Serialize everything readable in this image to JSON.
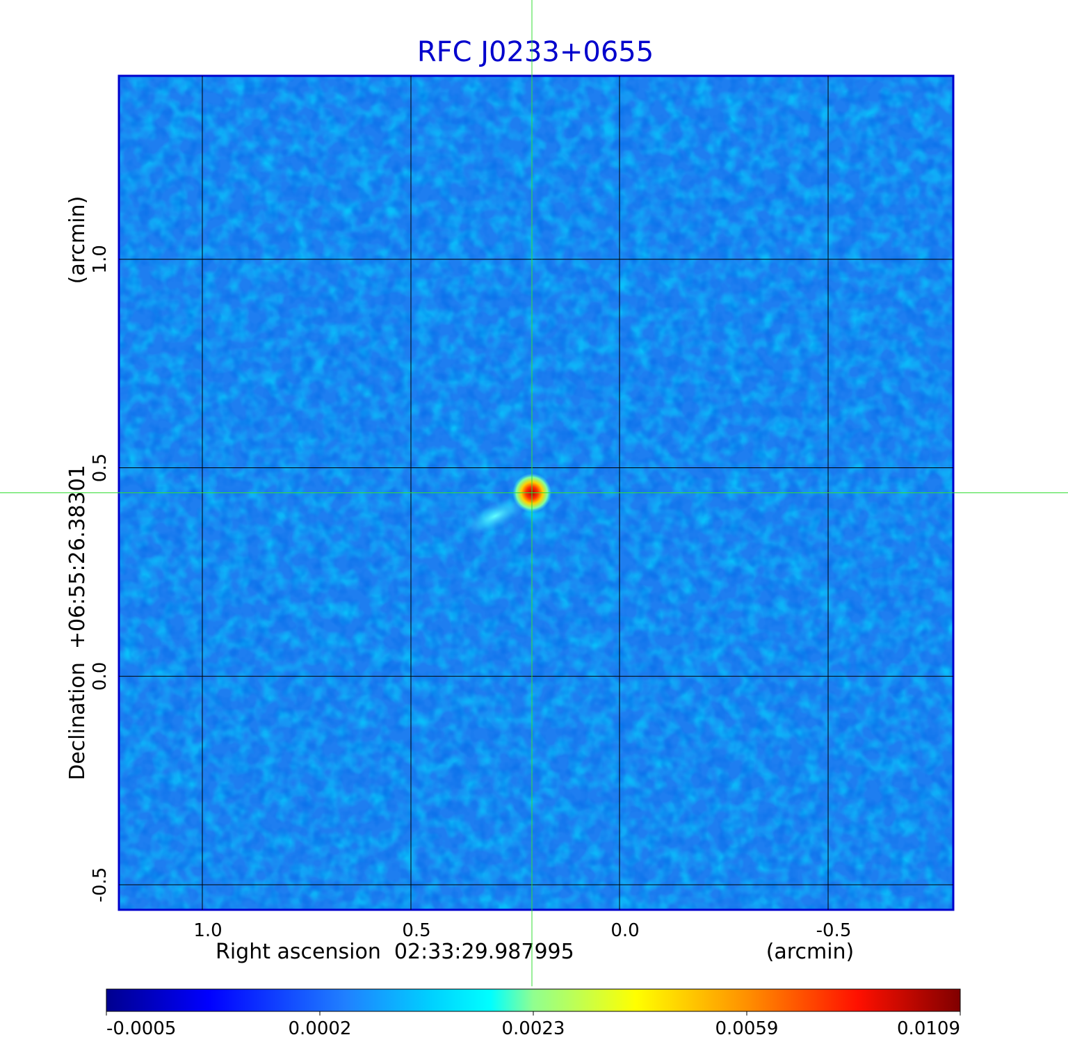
{
  "chart_data": {
    "type": "image",
    "title": "RFC J0233+0655",
    "xlabel": "Right ascension  02:33:29.987995",
    "xunit": "(arcmin)",
    "ylabel": "Declination  +06:55:26.38301",
    "yunit": "(arcmin)",
    "xlim": [
      1.2,
      -0.8
    ],
    "ylim": [
      -0.56,
      1.44
    ],
    "xticks": [
      {
        "value": 1,
        "label": "1.0"
      },
      0.5,
      {
        "value": 0,
        "label": "0.0"
      },
      -0.5
    ],
    "yticks": [
      {
        "value": 1,
        "label": "1.0"
      },
      0.5,
      {
        "value": 0,
        "label": "0.0"
      },
      -0.5
    ],
    "grid": true,
    "source": {
      "x": 0.21,
      "y": 0.44
    },
    "colorbar": {
      "ticks": [
        -0.0005,
        0.0002,
        0.0023,
        0.0059,
        0.0109
      ]
    }
  }
}
